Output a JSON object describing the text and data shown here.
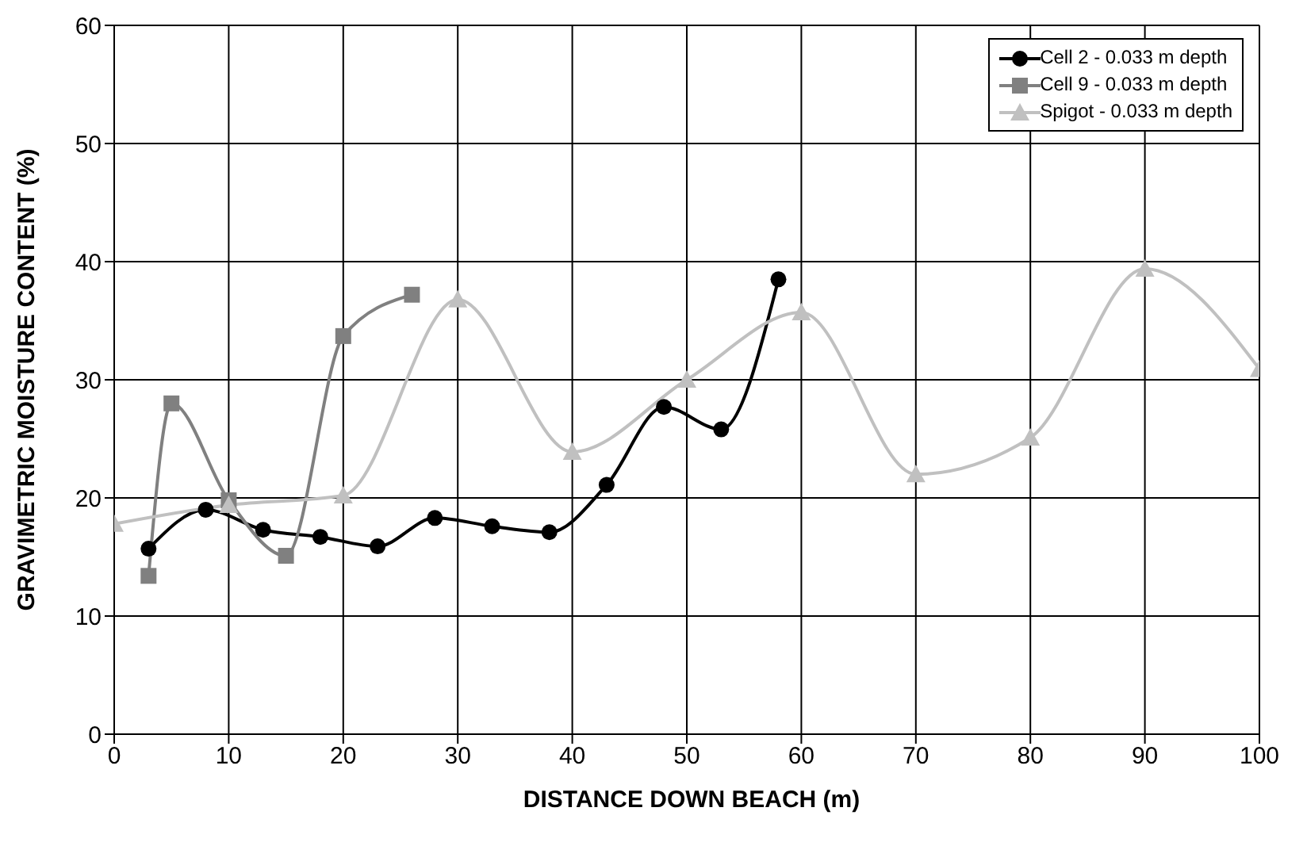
{
  "chart_data": {
    "type": "line",
    "xlabel": "DISTANCE DOWN BEACH (m)",
    "ylabel": "GRAVIMETRIC MOISTURE CONTENT (%)",
    "xlim": [
      0,
      100
    ],
    "xticks": [
      0,
      10,
      20,
      30,
      40,
      50,
      60,
      70,
      80,
      90,
      100
    ],
    "ylim": [
      0,
      60
    ],
    "yticks": [
      0,
      10,
      20,
      30,
      40,
      50,
      60
    ],
    "grid": true,
    "legend": "top right",
    "series": [
      {
        "name": "Cell 2 - 0.033 m depth",
        "color": "#000000",
        "marker": "circle",
        "x": [
          3,
          8,
          13,
          18,
          23,
          28,
          33,
          38,
          43,
          48,
          53,
          58
        ],
        "values": [
          15.7,
          19,
          17.3,
          16.7,
          15.9,
          18.3,
          17.6,
          17.1,
          21.1,
          27.7,
          25.8,
          38.5
        ]
      },
      {
        "name": "Cell 9 - 0.033 m depth",
        "color": "#808080",
        "marker": "square",
        "x": [
          3,
          5,
          10,
          15,
          20,
          26
        ],
        "values": [
          13.4,
          28,
          19.8,
          15.1,
          33.7,
          37.2
        ]
      },
      {
        "name": "Spigot - 0.033 m depth",
        "color": "#c0c0c0",
        "marker": "triangle",
        "x": [
          0,
          10,
          20,
          30,
          40,
          50,
          60,
          70,
          80,
          90,
          100
        ],
        "values": [
          17.8,
          19.4,
          20.2,
          36.8,
          23.9,
          30,
          35.7,
          22,
          25.1,
          39.4,
          30.9
        ]
      }
    ]
  }
}
